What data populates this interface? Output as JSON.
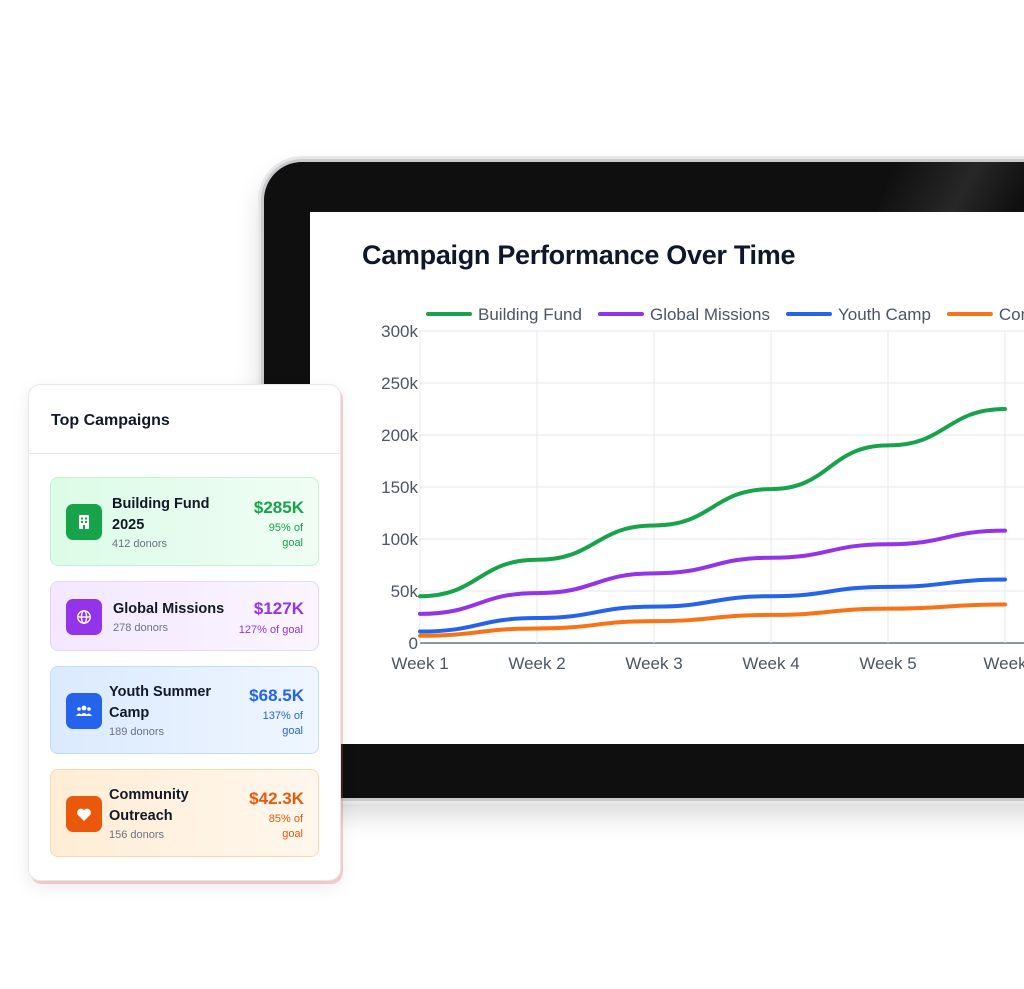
{
  "chart": {
    "title": "Campaign Performance Over Time"
  },
  "chart_data": {
    "type": "line",
    "title": "Campaign Performance Over Time",
    "x": [
      "Week 1",
      "Week 2",
      "Week 3",
      "Week 4",
      "Week 5",
      "Week"
    ],
    "ylim": [
      0,
      300000
    ],
    "yticks": [
      "0",
      "50k",
      "100k",
      "150k",
      "200k",
      "250k",
      "300k"
    ],
    "ytick_values": [
      0,
      50000,
      100000,
      150000,
      200000,
      250000,
      300000
    ],
    "grid": true,
    "legend_position": "top",
    "series": [
      {
        "name": "Building Fund",
        "color": "#16a34a",
        "values": [
          45000,
          80000,
          113000,
          148000,
          190000,
          225000
        ]
      },
      {
        "name": "Global Missions",
        "color": "#9333ea",
        "values": [
          28000,
          48000,
          67000,
          82000,
          95000,
          108000
        ]
      },
      {
        "name": "Youth Camp",
        "color": "#2563eb",
        "values": [
          11000,
          24000,
          35000,
          45000,
          54000,
          61000
        ]
      },
      {
        "name": "Com",
        "color": "#f97316",
        "values": [
          7000,
          14000,
          21000,
          27000,
          33000,
          37000
        ]
      }
    ]
  },
  "top_campaigns": {
    "title": "Top Campaigns",
    "items": [
      {
        "name_line1": "Building Fund",
        "name_line2": "2025",
        "donors": "412 donors",
        "amount": "$285K",
        "pct_line1": "95% of",
        "pct_line2": "goal",
        "color": "#16a34a",
        "icon": "building-icon"
      },
      {
        "name_line1": "Global Missions",
        "name_line2": "",
        "donors": "278 donors",
        "amount": "$127K",
        "pct_line1": "127% of goal",
        "pct_line2": "",
        "color": "#9333ea",
        "icon": "globe-icon"
      },
      {
        "name_line1": "Youth Summer",
        "name_line2": "Camp",
        "donors": "189 donors",
        "amount": "$68.5K",
        "pct_line1": "137% of",
        "pct_line2": "goal",
        "color": "#2563eb",
        "icon": "people-icon"
      },
      {
        "name_line1": "Community",
        "name_line2": "Outreach",
        "donors": "156 donors",
        "amount": "$42.3K",
        "pct_line1": "85% of",
        "pct_line2": "goal",
        "color": "#ea580c",
        "icon": "heart-icon"
      }
    ]
  }
}
